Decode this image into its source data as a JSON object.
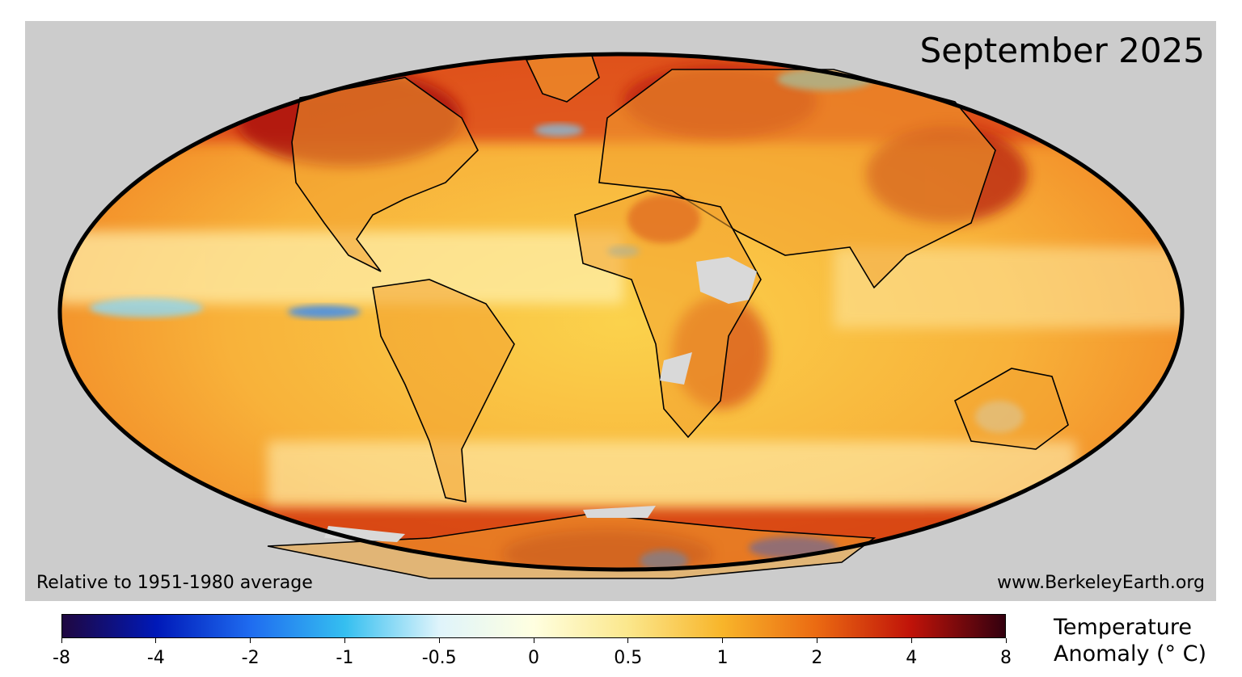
{
  "map": {
    "title": "September 2025",
    "note": "Relative to 1951-1980 average",
    "source": "www.BerkeleyEarth.org",
    "projection": "Mollweide",
    "colors": {
      "background": "#cccccc",
      "no_data": "#d9d9d9",
      "ocean_warm": "#f5a623",
      "strong_warm": "#c81e0c",
      "cool": "#5fc3f0",
      "strong_cool": "#0b2fd8"
    }
  },
  "legend": {
    "title_line1": "Temperature",
    "title_line2": "Anomaly (° C)",
    "ticks": [
      "-8",
      "-4",
      "-2",
      "-1",
      "-0.5",
      "0",
      "0.5",
      "1",
      "2",
      "4",
      "8"
    ],
    "colors": [
      "#1f0740",
      "#0019b8",
      "#1f6cf0",
      "#35bff0",
      "#dff4fb",
      "#ffffe0",
      "#fbe78c",
      "#f8b52a",
      "#eb6a12",
      "#c01309",
      "#33000f"
    ]
  }
}
